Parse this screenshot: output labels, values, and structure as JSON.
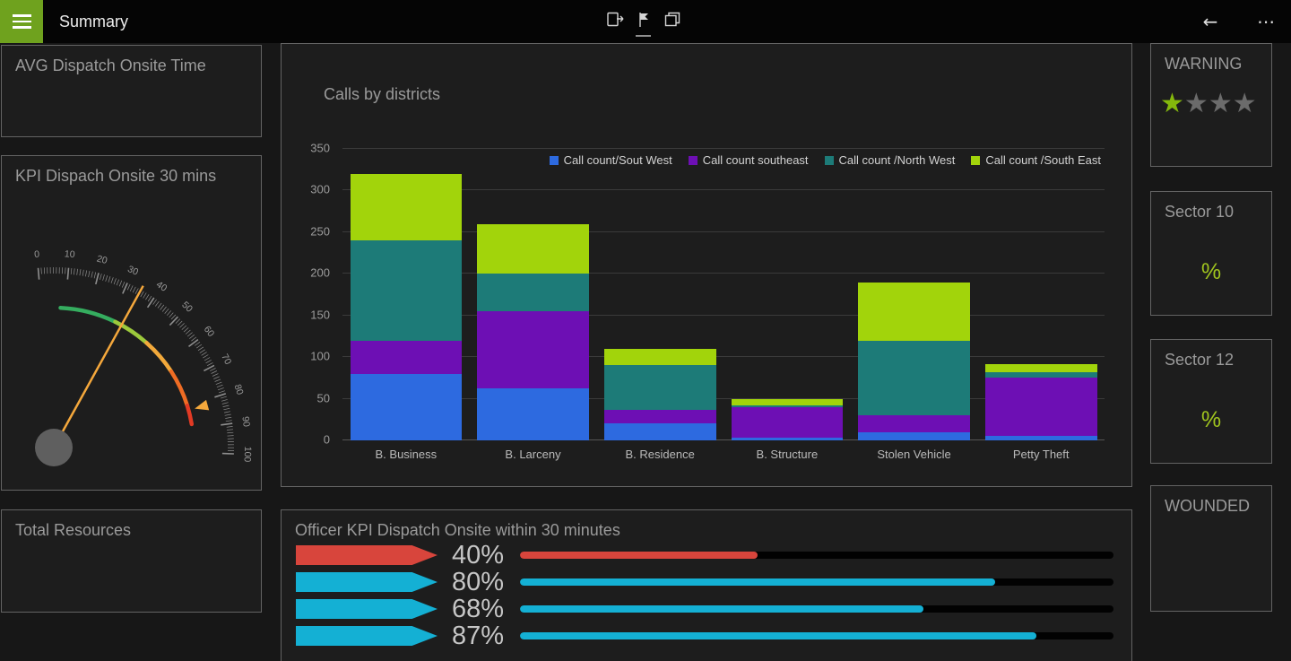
{
  "topbar": {
    "title": "Summary",
    "back_label": "←",
    "more_label": "⋯"
  },
  "left_column": {
    "avg_panel_title": "AVG Dispatch Onsite Time",
    "total_panel_title": "Total Resources"
  },
  "right_column": {
    "warning": {
      "title": "WARNING",
      "stars_total": 4,
      "stars_filled": 1,
      "star_glyph": "★"
    },
    "sector10": {
      "title": "Sector 10",
      "value": "%"
    },
    "sector12": {
      "title": "Sector 12",
      "value": "%"
    },
    "wounded": {
      "title": "WOUNDED"
    }
  },
  "colors": {
    "accent_green": "#84b80c",
    "hamburger_green": "#6fa21e",
    "alert_red": "#d8453c",
    "info_cyan": "#14b0d4"
  },
  "chart_data": [
    {
      "type": "bar",
      "stacked": true,
      "title": "Calls by districts",
      "categories": [
        "B. Business",
        "B. Larceny",
        "B. Residence",
        "B. Structure",
        "Stolen Vehicle",
        "Petty Theft"
      ],
      "series": [
        {
          "name": "Call count/Sout West",
          "color": "#2d6ae0",
          "values": [
            80,
            62,
            20,
            3,
            10,
            5
          ]
        },
        {
          "name": "Call count southeast",
          "color": "#6d0fb4",
          "values": [
            40,
            93,
            17,
            37,
            20,
            70
          ]
        },
        {
          "name": "Call count /North West",
          "color": "#1d7b78",
          "values": [
            120,
            45,
            53,
            2,
            90,
            7
          ]
        },
        {
          "name": "Call count /South East",
          "color": "#a2d40b",
          "values": [
            80,
            60,
            20,
            8,
            70,
            10
          ]
        }
      ],
      "ylim": [
        0,
        350
      ],
      "ytick": 50,
      "grid": true,
      "legend_position": "top-right"
    },
    {
      "type": "gauge",
      "title": "KPI Dispach Onsite 30 mins",
      "min": 0,
      "max": 100,
      "major_tick": 10,
      "tick_labels": [
        0,
        10,
        20,
        30,
        40,
        50,
        60,
        70,
        80,
        90,
        100
      ],
      "value": 35,
      "marker": 82,
      "needle_color": "#f5a83c",
      "arc_segments": [
        {
          "from": 8,
          "to": 32,
          "color": "#35ad5f"
        },
        {
          "from": 32,
          "to": 48,
          "color": "#9cc93c"
        },
        {
          "from": 48,
          "to": 64,
          "color": "#f2a93b"
        },
        {
          "from": 64,
          "to": 80,
          "color": "#ef6c24"
        },
        {
          "from": 80,
          "to": 88,
          "color": "#e23a24"
        }
      ]
    },
    {
      "type": "bullet",
      "title": "Officer KPI Dispatch Onsite within 30 minutes",
      "rows": [
        {
          "label": "40%",
          "value": 40,
          "max": 100,
          "color": "#d8453c"
        },
        {
          "label": "80%",
          "value": 80,
          "max": 100,
          "color": "#14b0d4"
        },
        {
          "label": "68%",
          "value": 68,
          "max": 100,
          "color": "#14b0d4"
        },
        {
          "label": "87%",
          "value": 87,
          "max": 100,
          "color": "#14b0d4"
        }
      ]
    }
  ]
}
